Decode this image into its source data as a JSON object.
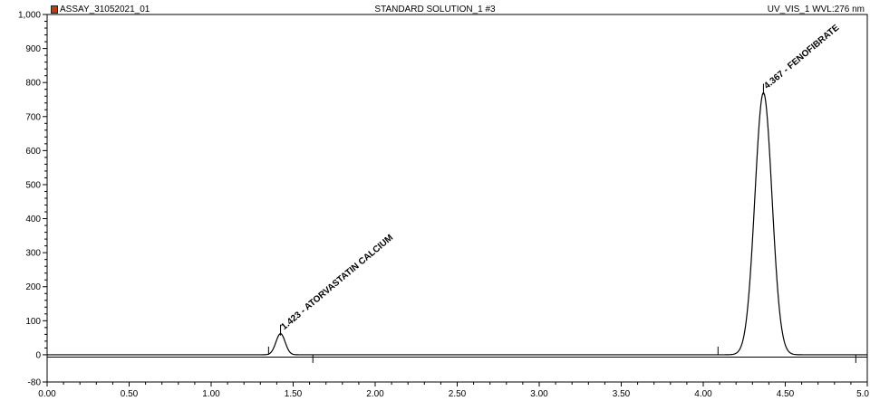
{
  "header": {
    "left": "ASSAY_31052021_01",
    "center": "STANDARD SOLUTION_1 #3",
    "right": "UV_VIS_1 WVL:276 nm"
  },
  "chart_data": {
    "type": "line",
    "title": "STANDARD SOLUTION_1 #3",
    "xlabel": "",
    "ylabel": "",
    "xlim": [
      0.0,
      5.0
    ],
    "ylim": [
      -80,
      1000
    ],
    "grid": false,
    "x_ticks": [
      "0.00",
      "0.50",
      "1.00",
      "1.50",
      "2.00",
      "2.50",
      "3.00",
      "3.50",
      "4.00",
      "4.50",
      "5.0"
    ],
    "y_ticks": [
      "-80",
      "0",
      "100",
      "200",
      "300",
      "400",
      "500",
      "600",
      "700",
      "800",
      "900",
      "1,000"
    ],
    "peaks": [
      {
        "label": "1.423 - ATORVASTATIN CALCIUM",
        "retention_time": 1.423,
        "height": 62,
        "width": 0.028
      },
      {
        "label": "4.367 - FENOFIBRATE",
        "retention_time": 4.367,
        "height": 770,
        "width": 0.052
      }
    ],
    "integration_marks": [
      1.35,
      1.62,
      4.09,
      4.93
    ]
  }
}
